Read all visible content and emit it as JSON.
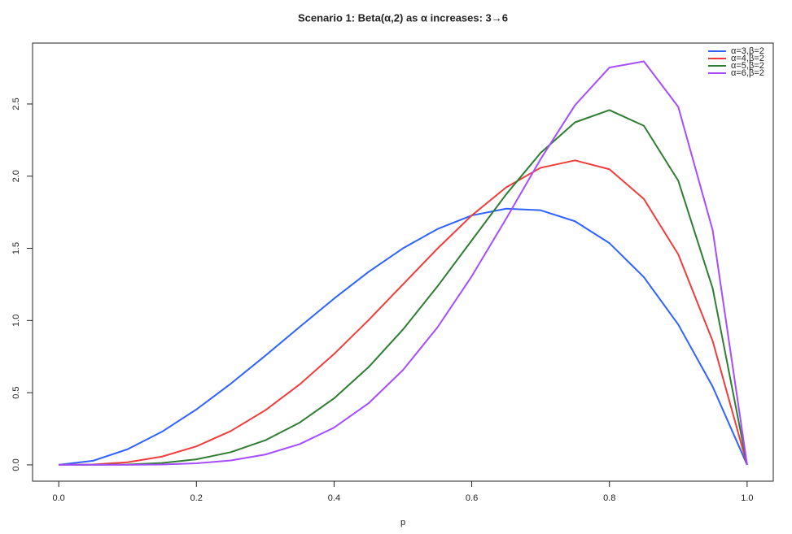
{
  "chart_data": {
    "type": "line",
    "title": "Scenario 1: Beta(α,2) as α increases: 3→6",
    "x_label": "p",
    "x": [
      0,
      0.05,
      0.1,
      0.15,
      0.2,
      0.25,
      0.3,
      0.35,
      0.4,
      0.45,
      0.5,
      0.55,
      0.6,
      0.65,
      0.7,
      0.75,
      0.8,
      0.85,
      0.9,
      0.95,
      1
    ],
    "series": [
      {
        "name": "α=3,β=2",
        "color": "#2f62ff",
        "values": [
          0,
          0.0285,
          0.108,
          0.2295,
          0.384,
          0.5625,
          0.756,
          0.9555,
          1.152,
          1.3365,
          1.5,
          1.6335,
          1.728,
          1.7745,
          1.764,
          1.6875,
          1.536,
          1.3005,
          0.972,
          0.5415,
          0
        ]
      },
      {
        "name": "α=4,β=2",
        "color": "#f03c3c",
        "values": [
          0,
          0.0024,
          0.018,
          0.0574,
          0.128,
          0.2344,
          0.378,
          0.5574,
          0.768,
          1.0024,
          1.25,
          1.4974,
          1.728,
          1.9224,
          2.058,
          2.1094,
          2.048,
          1.8424,
          1.458,
          0.8574,
          0
        ]
      },
      {
        "name": "α=5,β=2",
        "color": "#2e7d32",
        "values": [
          0,
          0.0002,
          0.0027,
          0.0129,
          0.0384,
          0.0879,
          0.1701,
          0.2926,
          0.4608,
          0.6766,
          0.9375,
          1.2353,
          1.5552,
          1.8743,
          2.1609,
          2.373,
          2.4576,
          2.349,
          1.9683,
          1.2218,
          0
        ]
      },
      {
        "name": "α=6,β=2",
        "color": "#a64dff",
        "values": [
          0,
          0,
          0.0004,
          0.0027,
          0.0108,
          0.0308,
          0.0714,
          0.1434,
          0.258,
          0.4263,
          0.6563,
          0.9512,
          1.3064,
          1.7056,
          2.1177,
          2.4917,
          2.7525,
          2.7953,
          2.4801,
          1.6249,
          0
        ]
      }
    ],
    "xlim": [
      -0.038,
      1.038
    ],
    "ylim": [
      -0.113,
      2.922
    ],
    "xticks": [
      {
        "value": 0,
        "label": "0.0"
      },
      0.2,
      0.4,
      0.6,
      0.8,
      {
        "value": 1,
        "label": "1.0"
      }
    ],
    "yticks": [
      {
        "value": 0,
        "label": "0.0"
      },
      0.5,
      {
        "value": 1,
        "label": "1.0"
      },
      1.5,
      {
        "value": 2,
        "label": "2.0"
      },
      2.5
    ],
    "legend_position": "top-right"
  }
}
